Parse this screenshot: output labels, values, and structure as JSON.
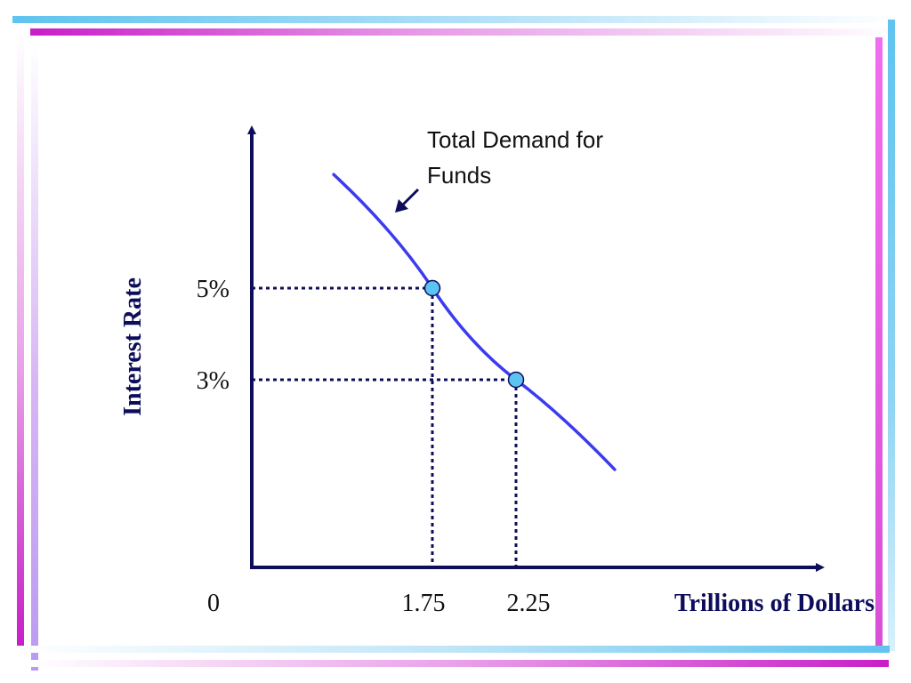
{
  "chart_data": {
    "type": "line",
    "series": [
      {
        "name": "Total Demand for Funds",
        "points": [
          [
            1.75,
            5
          ],
          [
            2.25,
            3
          ]
        ],
        "color": "#3b3bef"
      }
    ],
    "highlight_points": [
      {
        "x": 1.75,
        "y": 5,
        "color": "#5cc4f2"
      },
      {
        "x": 2.25,
        "y": 3,
        "color": "#5cc4f2"
      }
    ],
    "x_ticks": [
      {
        "value": 0,
        "label": "0"
      },
      {
        "value": 1.75,
        "label": "1.75"
      },
      {
        "value": 2.25,
        "label": "2.25"
      }
    ],
    "y_ticks": [
      {
        "value": 5,
        "label": "5%"
      },
      {
        "value": 3,
        "label": "3%"
      }
    ],
    "xlabel": "Trillions of Dollars",
    "ylabel": "Interest Rate",
    "annotation": {
      "lines": [
        "Total Demand for",
        "Funds"
      ]
    },
    "axis_color": "#0d0d5c",
    "guide_color": "#0d0d5c",
    "grid": false
  }
}
